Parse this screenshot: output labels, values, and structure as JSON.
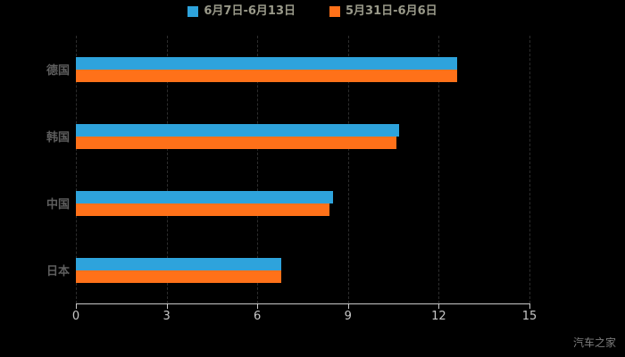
{
  "chart_data": {
    "type": "bar",
    "orientation": "horizontal",
    "title": "",
    "xlabel": "",
    "ylabel": "",
    "categories": [
      "德国",
      "韩国",
      "中国",
      "日本"
    ],
    "series": [
      {
        "name": "6月7日-6月13日",
        "color": "#2EA3DC",
        "values": [
          12.6,
          10.7,
          8.5,
          6.8
        ]
      },
      {
        "name": "5月31日-6月6日",
        "color": "#FF7119",
        "values": [
          12.6,
          10.6,
          8.4,
          6.8
        ]
      }
    ],
    "xlim": [
      0,
      15
    ],
    "xticks": [
      0,
      3,
      6,
      9,
      12,
      15
    ],
    "legend_position": "top",
    "grid": true,
    "background": "#000000"
  },
  "watermark": "汽车之家"
}
